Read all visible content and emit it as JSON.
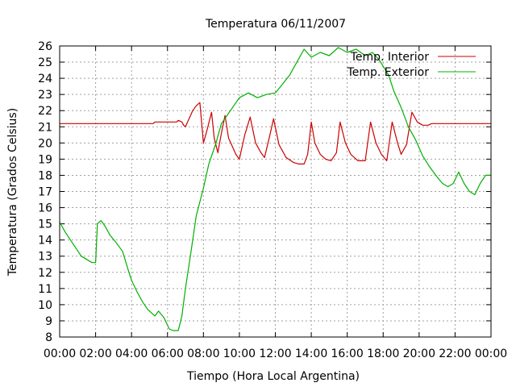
{
  "chart_data": {
    "type": "line",
    "title": "Temperatura 06/11/2007",
    "xlabel": "Tiempo (Hora Local Argentina)",
    "ylabel": "Temperatura (Grados Celsius)",
    "xlim": [
      0,
      24
    ],
    "ylim": [
      8,
      26
    ],
    "xticks": [
      0,
      2,
      4,
      6,
      8,
      10,
      12,
      14,
      16,
      18,
      20,
      22,
      24
    ],
    "xtick_labels": [
      "00:00",
      "02:00",
      "04:00",
      "06:00",
      "08:00",
      "10:00",
      "12:00",
      "14:00",
      "16:00",
      "18:00",
      "20:00",
      "22:00",
      "00:00"
    ],
    "yticks": [
      8,
      9,
      10,
      11,
      12,
      13,
      14,
      15,
      16,
      17,
      18,
      19,
      20,
      21,
      22,
      23,
      24,
      25,
      26
    ],
    "grid": true,
    "legend_position": "top-right",
    "series": [
      {
        "name": "Temp. Interior",
        "color": "#cc0000",
        "x": [
          0,
          5.2,
          5.3,
          6.5,
          6.6,
          6.8,
          6.9,
          7.0,
          7.2,
          7.4,
          7.6,
          7.8,
          8.0,
          8.2,
          8.45,
          8.6,
          8.8,
          9.0,
          9.2,
          9.4,
          9.6,
          9.8,
          10.0,
          10.3,
          10.6,
          10.9,
          11.0,
          11.2,
          11.4,
          11.7,
          11.9,
          12.2,
          12.6,
          13.0,
          13.3,
          13.6,
          13.8,
          13.9,
          14.0,
          14.2,
          14.5,
          14.8,
          15.1,
          15.4,
          15.6,
          15.9,
          16.2,
          16.6,
          17.0,
          17.3,
          17.6,
          17.9,
          18.2,
          18.5,
          18.8,
          19.0,
          19.3,
          19.6,
          19.9,
          20.2,
          20.5,
          20.7,
          21.0,
          24.0
        ],
        "y": [
          21.2,
          21.2,
          21.3,
          21.3,
          21.4,
          21.3,
          21.1,
          21.0,
          21.5,
          22.0,
          22.3,
          22.5,
          20.0,
          20.8,
          21.9,
          20.3,
          19.4,
          20.6,
          21.7,
          20.3,
          19.8,
          19.3,
          19.0,
          20.5,
          21.6,
          20.0,
          19.8,
          19.4,
          19.1,
          20.5,
          21.5,
          19.9,
          19.1,
          18.8,
          18.7,
          18.7,
          19.3,
          20.3,
          21.3,
          20.0,
          19.3,
          19.0,
          18.9,
          19.4,
          21.3,
          20.0,
          19.3,
          18.9,
          18.9,
          21.3,
          20.0,
          19.3,
          18.9,
          21.3,
          20.0,
          19.3,
          19.9,
          21.9,
          21.3,
          21.1,
          21.1,
          21.2,
          21.2,
          21.2
        ]
      },
      {
        "name": "Temp. Exterior",
        "color": "#00b000",
        "x": [
          0,
          0.3,
          0.6,
          0.9,
          1.2,
          1.5,
          1.8,
          2.0,
          2.1,
          2.3,
          2.5,
          2.8,
          3.1,
          3.5,
          3.8,
          4.0,
          4.3,
          4.6,
          4.9,
          5.1,
          5.3,
          5.5,
          5.8,
          6.1,
          6.3,
          6.6,
          6.8,
          7.0,
          7.3,
          7.6,
          8.0,
          8.3,
          8.7,
          9.0,
          9.5,
          10.0,
          10.5,
          11.0,
          11.5,
          12.0,
          12.3,
          12.8,
          13.2,
          13.6,
          14.0,
          14.5,
          15.0,
          15.5,
          16.0,
          16.5,
          17.0,
          17.4,
          17.8,
          18.3,
          18.6,
          19.0,
          19.4,
          19.8,
          20.2,
          20.6,
          21.0,
          21.3,
          21.6,
          21.9,
          22.2,
          22.5,
          22.8,
          23.1,
          23.4,
          23.7,
          24.0
        ],
        "y": [
          15.1,
          14.5,
          14.0,
          13.5,
          13.0,
          12.8,
          12.6,
          12.6,
          15.0,
          15.2,
          14.9,
          14.3,
          13.9,
          13.3,
          12.2,
          11.5,
          10.8,
          10.2,
          9.7,
          9.5,
          9.3,
          9.6,
          9.2,
          8.5,
          8.4,
          8.4,
          9.3,
          11.0,
          13.2,
          15.5,
          17.2,
          18.7,
          20.0,
          21.2,
          22.0,
          22.8,
          23.1,
          22.8,
          23.0,
          23.1,
          23.5,
          24.2,
          25.0,
          25.8,
          25.3,
          25.6,
          25.4,
          25.9,
          25.6,
          25.8,
          25.4,
          25.6,
          25.1,
          24.2,
          23.2,
          22.2,
          21.0,
          20.2,
          19.2,
          18.5,
          17.9,
          17.5,
          17.3,
          17.5,
          18.2,
          17.5,
          17.0,
          16.8,
          17.5,
          18.0,
          18.0
        ]
      }
    ]
  }
}
